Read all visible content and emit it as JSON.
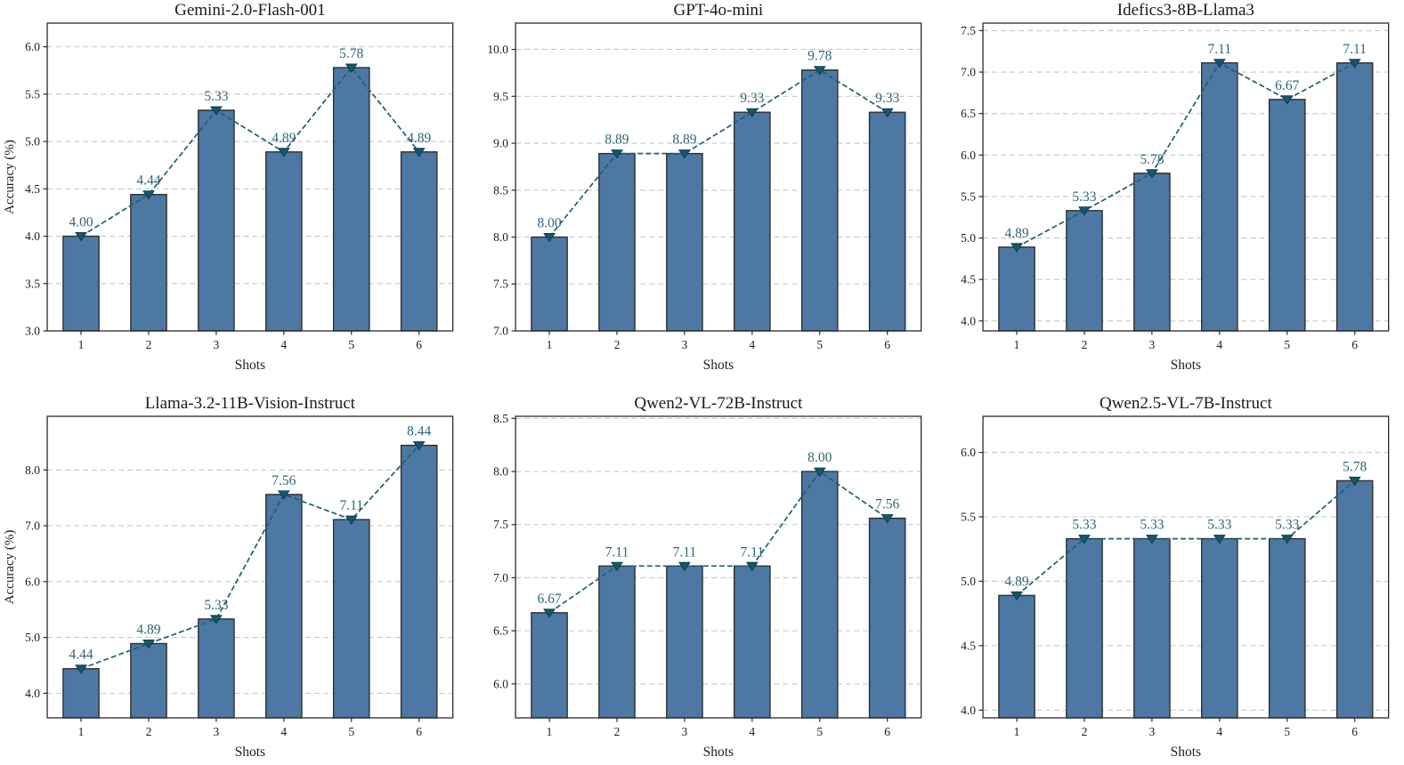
{
  "figure": {
    "background": "#ffffff",
    "rows": 2,
    "cols": 3
  },
  "style": {
    "bar_fill": "#4d78a3",
    "bar_edge": "#2f2f2f",
    "line_color": "#1d6070",
    "marker_fill": "#14596b",
    "marker_edge": "#0e3c4c",
    "value_label_color": "#2b6779",
    "grid_color": "#c7c7c7",
    "axis_color": "#2b2b2b",
    "tick_text_color": "#202020",
    "title_color": "#1a1a1a"
  },
  "chart_data": [
    {
      "type": "bar",
      "title": "Gemini-2.0-Flash-001",
      "xlabel": "Shots",
      "ylabel": "Accuracy (%)",
      "categories": [
        "1",
        "2",
        "3",
        "4",
        "5",
        "6"
      ],
      "values": [
        4.0,
        4.44,
        5.33,
        4.89,
        5.78,
        4.89
      ],
      "value_labels": [
        "4.00",
        "4.44",
        "5.33",
        "4.89",
        "5.78",
        "4.89"
      ],
      "yticks": [
        3.0,
        3.5,
        4.0,
        4.5,
        5.0,
        5.5,
        6.0
      ],
      "ytick_labels": [
        "3.0",
        "3.5",
        "4.0",
        "4.5",
        "5.0",
        "5.5",
        "6.0"
      ],
      "ylim": [
        3.0,
        6.25
      ],
      "grid": true,
      "overlay_line": true,
      "legend": null
    },
    {
      "type": "bar",
      "title": "GPT-4o-mini",
      "xlabel": "Shots",
      "ylabel": "",
      "categories": [
        "1",
        "2",
        "3",
        "4",
        "5",
        "6"
      ],
      "values": [
        8.0,
        8.89,
        8.89,
        9.33,
        9.78,
        9.33
      ],
      "value_labels": [
        "8.00",
        "8.89",
        "8.89",
        "9.33",
        "9.78",
        "9.33"
      ],
      "yticks": [
        7.0,
        7.5,
        8.0,
        8.5,
        9.0,
        9.5,
        10.0
      ],
      "ytick_labels": [
        "7.0",
        "7.5",
        "8.0",
        "8.5",
        "9.0",
        "9.5",
        "10.0"
      ],
      "ylim": [
        7.0,
        10.28
      ],
      "grid": true,
      "overlay_line": true,
      "legend": null
    },
    {
      "type": "bar",
      "title": "Idefics3-8B-Llama3",
      "xlabel": "Shots",
      "ylabel": "",
      "categories": [
        "1",
        "2",
        "3",
        "4",
        "5",
        "6"
      ],
      "values": [
        4.89,
        5.33,
        5.78,
        7.11,
        6.67,
        7.11
      ],
      "value_labels": [
        "4.89",
        "5.33",
        "5.78",
        "7.11",
        "6.67",
        "7.11"
      ],
      "yticks": [
        4.0,
        4.5,
        5.0,
        5.5,
        6.0,
        6.5,
        7.0,
        7.5
      ],
      "ytick_labels": [
        "4.0",
        "4.5",
        "5.0",
        "5.5",
        "6.0",
        "6.5",
        "7.0",
        "7.5"
      ],
      "ylim": [
        3.88,
        7.59
      ],
      "grid": true,
      "overlay_line": true,
      "legend": null
    },
    {
      "type": "bar",
      "title": "Llama-3.2-11B-Vision-Instruct",
      "xlabel": "Shots",
      "ylabel": "Accuracy (%)",
      "categories": [
        "1",
        "2",
        "3",
        "4",
        "5",
        "6"
      ],
      "values": [
        4.44,
        4.89,
        5.33,
        7.56,
        7.11,
        8.44
      ],
      "value_labels": [
        "4.44",
        "4.89",
        "5.33",
        "7.56",
        "7.11",
        "8.44"
      ],
      "yticks": [
        4.0,
        5.0,
        6.0,
        7.0,
        8.0
      ],
      "ytick_labels": [
        "4.0",
        "5.0",
        "6.0",
        "7.0",
        "8.0"
      ],
      "ylim": [
        3.56,
        8.96
      ],
      "grid": true,
      "overlay_line": true,
      "legend": null
    },
    {
      "type": "bar",
      "title": "Qwen2-VL-72B-Instruct",
      "xlabel": "Shots",
      "ylabel": "",
      "categories": [
        "1",
        "2",
        "3",
        "4",
        "5",
        "6"
      ],
      "values": [
        6.67,
        7.11,
        7.11,
        7.11,
        8.0,
        7.56
      ],
      "value_labels": [
        "6.67",
        "7.11",
        "7.11",
        "7.11",
        "8.00",
        "7.56"
      ],
      "yticks": [
        6.0,
        6.5,
        7.0,
        7.5,
        8.0,
        8.5
      ],
      "ytick_labels": [
        "6.0",
        "6.5",
        "7.0",
        "7.5",
        "8.0",
        "8.5"
      ],
      "ylim": [
        5.68,
        8.52
      ],
      "grid": true,
      "overlay_line": true,
      "legend": null
    },
    {
      "type": "bar",
      "title": "Qwen2.5-VL-7B-Instruct",
      "xlabel": "Shots",
      "ylabel": "",
      "categories": [
        "1",
        "2",
        "3",
        "4",
        "5",
        "6"
      ],
      "values": [
        4.89,
        5.33,
        5.33,
        5.33,
        5.33,
        5.78
      ],
      "value_labels": [
        "4.89",
        "5.33",
        "5.33",
        "5.33",
        "5.33",
        "5.78"
      ],
      "yticks": [
        4.0,
        4.5,
        5.0,
        5.5,
        6.0
      ],
      "ytick_labels": [
        "4.0",
        "4.5",
        "5.0",
        "5.5",
        "6.0"
      ],
      "ylim": [
        3.94,
        6.28
      ],
      "grid": true,
      "overlay_line": true,
      "legend": null
    }
  ]
}
